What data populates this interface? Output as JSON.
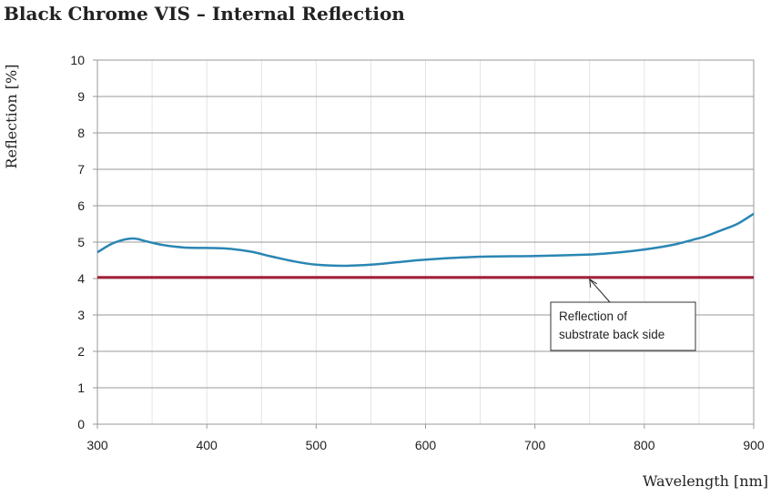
{
  "chart_data": {
    "type": "line",
    "title": "Black Chrome VIS – Internal Reflection",
    "xlabel": "Wavelength [nm]",
    "ylabel": "Reflection [%]",
    "xlim": [
      300,
      900
    ],
    "ylim": [
      0,
      10
    ],
    "xticks": [
      300,
      400,
      500,
      600,
      700,
      800,
      900
    ],
    "yticks": [
      0,
      1,
      2,
      3,
      4,
      5,
      6,
      7,
      8,
      9,
      10
    ],
    "grid": true,
    "series": [
      {
        "color": "#2a86b4",
        "x": [
          300,
          315,
          332,
          345,
          360,
          380,
          400,
          420,
          440,
          460,
          480,
          500,
          525,
          550,
          575,
          600,
          650,
          700,
          750,
          770,
          790,
          810,
          830,
          845,
          855,
          870,
          885,
          900
        ],
        "y": [
          4.72,
          4.98,
          5.1,
          5.02,
          4.92,
          4.85,
          4.84,
          4.82,
          4.74,
          4.6,
          4.47,
          4.38,
          4.35,
          4.38,
          4.45,
          4.52,
          4.6,
          4.62,
          4.66,
          4.7,
          4.76,
          4.84,
          4.95,
          5.07,
          5.15,
          5.32,
          5.5,
          5.78
        ]
      },
      {
        "color": "#a3203a",
        "x": [
          300,
          900
        ],
        "y": [
          4.03,
          4.03
        ]
      }
    ],
    "annotations": [
      {
        "text_line1": "Reflection of",
        "text_line2": "substrate back side",
        "points_to": [
          750,
          4.03
        ]
      }
    ]
  }
}
